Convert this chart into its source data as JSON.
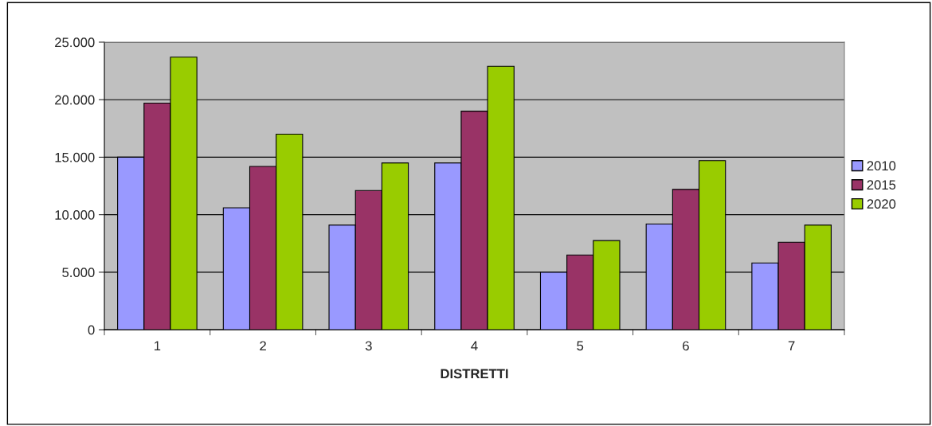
{
  "chart_data": {
    "type": "bar",
    "xlabel": "DISTRETTI",
    "categories": [
      "1",
      "2",
      "3",
      "4",
      "5",
      "6",
      "7"
    ],
    "series": [
      {
        "name": "2010",
        "color": "#9999ff",
        "values": [
          15000,
          10600,
          9100,
          14500,
          5000,
          9200,
          5800
        ]
      },
      {
        "name": "2015",
        "color": "#993366",
        "values": [
          19700,
          14200,
          12100,
          19000,
          6500,
          12200,
          7600
        ]
      },
      {
        "name": "2020",
        "color": "#99cc00",
        "values": [
          23700,
          17000,
          14500,
          22900,
          7750,
          14700,
          9100
        ]
      }
    ],
    "ylim": [
      0,
      25000
    ],
    "yticks": [
      {
        "value": 0,
        "label": "0"
      },
      {
        "value": 5000,
        "label": "5.000"
      },
      {
        "value": 10000,
        "label": "10.000"
      },
      {
        "value": 15000,
        "label": "15.000"
      },
      {
        "value": 20000,
        "label": "20.000"
      },
      {
        "value": 25000,
        "label": "25.000"
      }
    ],
    "grid": "y",
    "legend": "right"
  }
}
